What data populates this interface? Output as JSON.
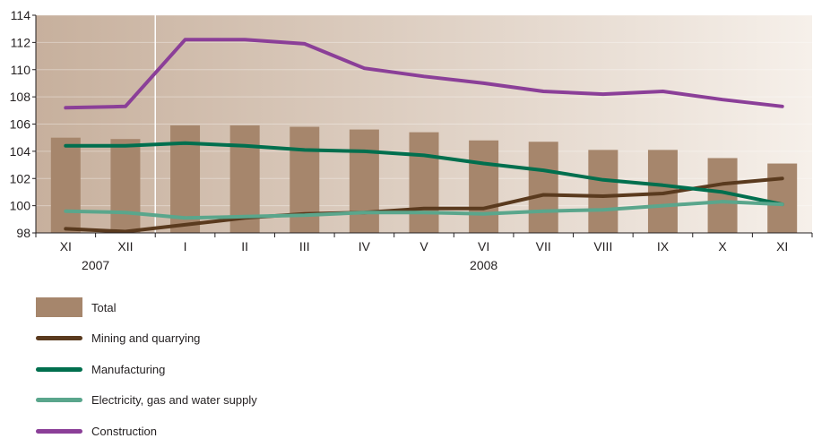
{
  "chart_data": {
    "type": "bar",
    "categories": [
      "XI",
      "XII",
      "I",
      "II",
      "III",
      "IV",
      "V",
      "VI",
      "VII",
      "VIII",
      "IX",
      "X",
      "XI"
    ],
    "year_labels": [
      {
        "label": "2007",
        "category_index": 0.5
      },
      {
        "label": "2008",
        "category_index": 7
      }
    ],
    "ylim": [
      98,
      114
    ],
    "yticks": [
      98,
      100,
      102,
      104,
      106,
      108,
      110,
      112,
      114
    ],
    "separator_after_index": 1,
    "bars": {
      "name": "Total",
      "color": "#a6866c",
      "values": [
        105.0,
        104.9,
        105.9,
        105.9,
        105.8,
        105.6,
        105.4,
        104.8,
        104.7,
        104.1,
        104.1,
        103.5,
        103.1
      ]
    },
    "series": [
      {
        "name": "Mining and quarrying",
        "color": "#5a3a1e",
        "values": [
          98.3,
          98.1,
          98.6,
          99.1,
          99.4,
          99.5,
          99.8,
          99.8,
          100.8,
          100.7,
          100.9,
          101.6,
          102.0
        ]
      },
      {
        "name": "Manufacturing",
        "color": "#006f4e",
        "values": [
          104.4,
          104.4,
          104.6,
          104.4,
          104.1,
          104.0,
          103.7,
          103.1,
          102.6,
          101.9,
          101.5,
          101.0,
          100.1
        ]
      },
      {
        "name": "Electricity, gas and water supply",
        "color": "#5aa68c",
        "values": [
          99.6,
          99.5,
          99.1,
          99.2,
          99.3,
          99.5,
          99.5,
          99.4,
          99.6,
          99.7,
          100.0,
          100.3,
          100.1
        ]
      },
      {
        "name": "Construction",
        "color": "#8b3f98",
        "values": [
          107.2,
          107.3,
          112.2,
          112.2,
          111.9,
          110.1,
          109.5,
          109.0,
          108.4,
          108.2,
          108.4,
          107.8,
          107.3
        ]
      }
    ],
    "background": {
      "left_color": "#c7b09d",
      "right_color": "#f6f0ea"
    },
    "legend": [
      {
        "label": "Total",
        "kind": "bar",
        "color": "#a6866c"
      },
      {
        "label": "Mining and quarrying",
        "kind": "line",
        "color": "#5a3a1e"
      },
      {
        "label": "Manufacturing",
        "kind": "line",
        "color": "#006f4e"
      },
      {
        "label": "Electricity, gas and water supply",
        "kind": "line",
        "color": "#5aa68c"
      },
      {
        "label": "Construction",
        "kind": "line",
        "color": "#8b3f98"
      }
    ],
    "legend_position": "bottom-left"
  }
}
